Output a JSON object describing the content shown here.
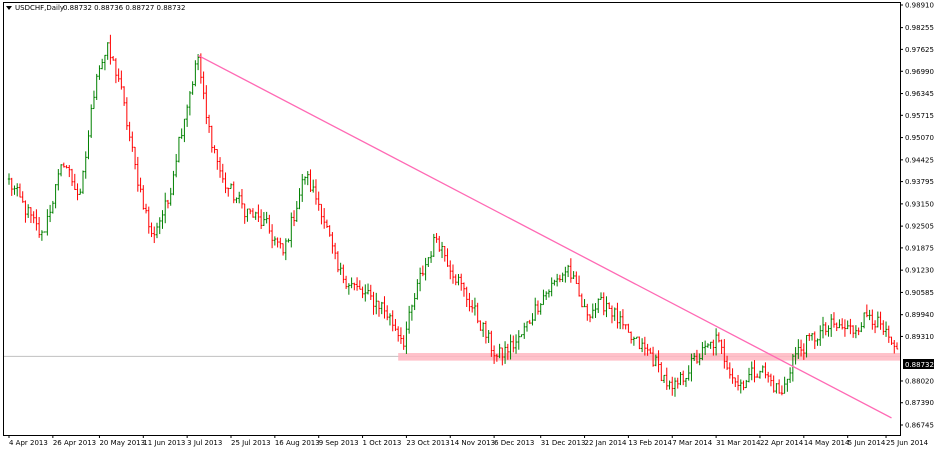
{
  "header": {
    "menu_icon": "triangle-down-icon",
    "symbol": "USDCHF,Daily",
    "ohlc": "0.88732 0.88736 0.88727 0.88732"
  },
  "chart_data": {
    "type": "ohlc",
    "symbol": "USDCHF",
    "timeframe": "Daily",
    "ylim": [
      0.86745,
      0.9891
    ],
    "y_ticks": [
      "0.98910",
      "0.98255",
      "0.97625",
      "0.96990",
      "0.96345",
      "0.95715",
      "0.95070",
      "0.94425",
      "0.93795",
      "0.93150",
      "0.92505",
      "0.91875",
      "0.91230",
      "0.90585",
      "0.89940",
      "0.89310",
      "0.88020",
      "0.87390",
      "0.86745"
    ],
    "current_price": "0.88732",
    "x_ticks": [
      "4 Apr 2013",
      "26 Apr 2013",
      "20 May 2013",
      "11 Jun 2013",
      "3 Jul 2013",
      "25 Jul 2013",
      "16 Aug 2013",
      "9 Sep 2013",
      "1 Oct 2013",
      "23 Oct 2013",
      "14 Nov 2013",
      "6 Dec 2013",
      "31 Dec 2013",
      "22 Jan 2014",
      "13 Feb 2014",
      "7 Mar 2014",
      "31 Mar 2014",
      "22 Apr 2014",
      "14 May 2014",
      "5 Jun 2014",
      "25 Jun 2014"
    ],
    "x_tick_index": [
      0,
      16,
      33,
      49,
      65,
      81,
      97,
      113,
      129,
      145,
      161,
      177,
      194,
      210,
      226,
      242,
      258,
      274,
      290,
      306,
      320
    ],
    "bar_count": 325,
    "key_closes": [
      {
        "i": 0,
        "v": 0.938
      },
      {
        "i": 6,
        "v": 0.93
      },
      {
        "i": 12,
        "v": 0.922
      },
      {
        "i": 20,
        "v": 0.944
      },
      {
        "i": 26,
        "v": 0.933
      },
      {
        "i": 32,
        "v": 0.97
      },
      {
        "i": 36,
        "v": 0.976
      },
      {
        "i": 40,
        "v": 0.968
      },
      {
        "i": 46,
        "v": 0.942
      },
      {
        "i": 52,
        "v": 0.922
      },
      {
        "i": 58,
        "v": 0.932
      },
      {
        "i": 62,
        "v": 0.95
      },
      {
        "i": 66,
        "v": 0.964
      },
      {
        "i": 69,
        "v": 0.974
      },
      {
        "i": 72,
        "v": 0.956
      },
      {
        "i": 78,
        "v": 0.938
      },
      {
        "i": 86,
        "v": 0.93
      },
      {
        "i": 94,
        "v": 0.925
      },
      {
        "i": 100,
        "v": 0.917
      },
      {
        "i": 108,
        "v": 0.94
      },
      {
        "i": 114,
        "v": 0.93
      },
      {
        "i": 120,
        "v": 0.912
      },
      {
        "i": 128,
        "v": 0.906
      },
      {
        "i": 136,
        "v": 0.902
      },
      {
        "i": 144,
        "v": 0.892
      },
      {
        "i": 150,
        "v": 0.91
      },
      {
        "i": 156,
        "v": 0.922
      },
      {
        "i": 162,
        "v": 0.912
      },
      {
        "i": 170,
        "v": 0.9
      },
      {
        "i": 178,
        "v": 0.887
      },
      {
        "i": 186,
        "v": 0.892
      },
      {
        "i": 194,
        "v": 0.904
      },
      {
        "i": 204,
        "v": 0.913
      },
      {
        "i": 210,
        "v": 0.9
      },
      {
        "i": 218,
        "v": 0.903
      },
      {
        "i": 226,
        "v": 0.893
      },
      {
        "i": 234,
        "v": 0.888
      },
      {
        "i": 242,
        "v": 0.877
      },
      {
        "i": 250,
        "v": 0.886
      },
      {
        "i": 258,
        "v": 0.892
      },
      {
        "i": 266,
        "v": 0.879
      },
      {
        "i": 274,
        "v": 0.884
      },
      {
        "i": 282,
        "v": 0.876
      },
      {
        "i": 286,
        "v": 0.887
      },
      {
        "i": 292,
        "v": 0.892
      },
      {
        "i": 300,
        "v": 0.896
      },
      {
        "i": 308,
        "v": 0.895
      },
      {
        "i": 314,
        "v": 0.9
      },
      {
        "i": 320,
        "v": 0.893
      },
      {
        "i": 324,
        "v": 0.8873
      }
    ],
    "trendline": {
      "from": {
        "i": 69,
        "v": 0.9745
      },
      "to": {
        "i": 322,
        "v": 0.8695
      },
      "color": "#ff69b4"
    },
    "support_zone": {
      "from_i": 142,
      "to_i": 325,
      "low": 0.8861,
      "high": 0.8883,
      "color": "#ffb6c1"
    },
    "colors": {
      "up_bar": "#008000",
      "down_bar": "#ff0000",
      "trendline": "#ff69b4",
      "support_zone": "#ffb6c1",
      "price_box_bg": "#000000",
      "price_box_text": "#ffffff"
    }
  }
}
